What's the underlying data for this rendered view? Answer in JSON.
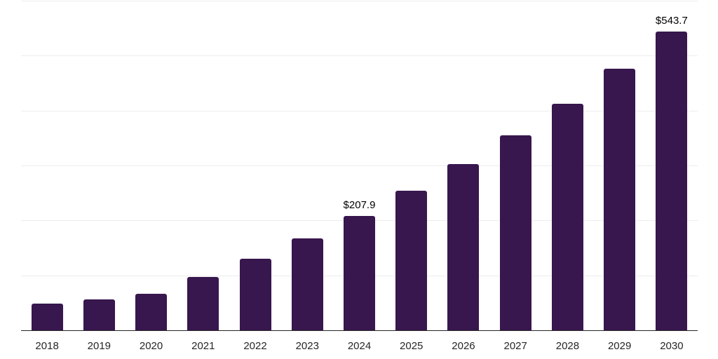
{
  "chart_data": {
    "type": "bar",
    "title": "",
    "xlabel": "",
    "ylabel": "",
    "categories": [
      "2018",
      "2019",
      "2020",
      "2021",
      "2022",
      "2023",
      "2024",
      "2025",
      "2026",
      "2027",
      "2028",
      "2029",
      "2030"
    ],
    "values": [
      48.9,
      56.5,
      66.9,
      97.4,
      130.6,
      167.0,
      207.9,
      254.4,
      302.9,
      355.2,
      412.6,
      476.4,
      543.7
    ],
    "data_labels": [
      {
        "category": "2024",
        "text": "$207.9"
      },
      {
        "category": "2030",
        "text": "$543.7"
      }
    ],
    "ylim": [
      0,
      600
    ],
    "gridline_values": [
      100,
      200,
      300,
      400,
      500,
      600
    ],
    "grid": true,
    "legend_position": "none",
    "colors": {
      "bar": "#38164e",
      "gridline": "#ededed",
      "axis_line": "#262626",
      "tick_label": "#262626",
      "value_label": "#000000",
      "background": "#ffffff"
    }
  }
}
